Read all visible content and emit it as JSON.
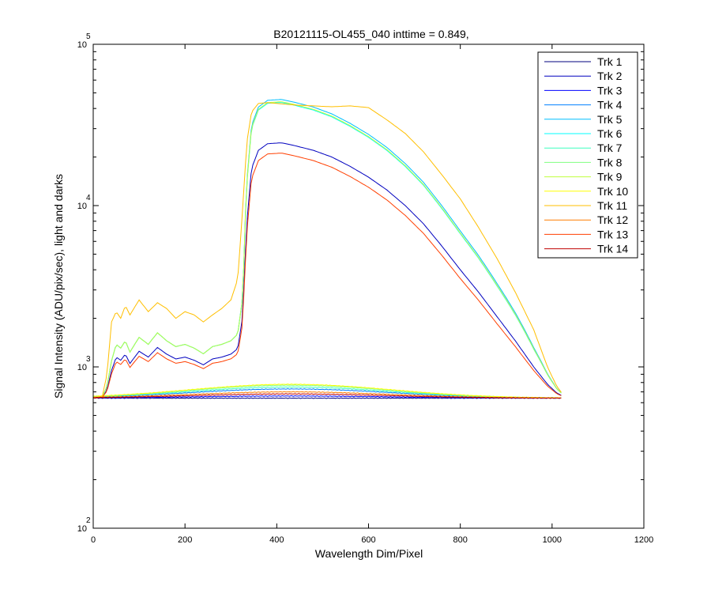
{
  "chart_data": {
    "type": "line",
    "title": "B20121115-OL455_040 inttime = 0.849,",
    "xlabel": "Wavelength Dim/Pixel",
    "ylabel": "Signal Intensity (ADU/pix/sec), light and darks",
    "xlim": [
      0,
      1200
    ],
    "ylim": [
      100,
      100000
    ],
    "yscale": "log",
    "grid": false,
    "legend_position": "top-right",
    "x_ticks": [
      0,
      200,
      400,
      600,
      800,
      1000,
      1200
    ],
    "y_ticks": [
      {
        "value": 100,
        "base": "10",
        "exp": "2"
      },
      {
        "value": 1000,
        "base": "10",
        "exp": "3"
      },
      {
        "value": 10000,
        "base": "10",
        "exp": "4"
      },
      {
        "value": 100000,
        "base": "10",
        "exp": "5"
      }
    ],
    "series": [
      {
        "name": "Trk 1",
        "color": "#00007f",
        "kind": "dark",
        "level": 1.0,
        "dark_peak": 640
      },
      {
        "name": "Trk 2",
        "color": "#0000bf",
        "kind": "light",
        "level": 1.0,
        "dark_peak": 720
      },
      {
        "name": "Trk 3",
        "color": "#0000ff",
        "kind": "dark",
        "level": 1.0,
        "dark_peak": 660
      },
      {
        "name": "Trk 4",
        "color": "#007fff",
        "kind": "dark",
        "level": 1.0,
        "dark_peak": 730
      },
      {
        "name": "Trk 5",
        "color": "#00bfff",
        "kind": "light",
        "level": 1.88,
        "dark_peak": 740
      },
      {
        "name": "Trk 6",
        "color": "#00ffff",
        "kind": "light",
        "level": 1.8,
        "dark_peak": 745
      },
      {
        "name": "Trk 7",
        "color": "#3fffbf",
        "kind": "dark",
        "level": 1.0,
        "dark_peak": 750
      },
      {
        "name": "Trk 8",
        "color": "#7fff7f",
        "kind": "dark",
        "level": 1.0,
        "dark_peak": 770
      },
      {
        "name": "Trk 9",
        "color": "#bfff3f",
        "kind": "light",
        "level": 1.82,
        "dark_peak": 760
      },
      {
        "name": "Trk 10",
        "color": "#ffff00",
        "kind": "dark",
        "level": 1.0,
        "dark_peak": 780
      },
      {
        "name": "Trk 11",
        "color": "#ffbf00",
        "kind": "light_orange",
        "level": 1.0,
        "dark_peak": 760
      },
      {
        "name": "Trk 12",
        "color": "#ff7f00",
        "kind": "dark",
        "level": 1.0,
        "dark_peak": 700
      },
      {
        "name": "Trk 13",
        "color": "#ff3f00",
        "kind": "light",
        "level": 0.86,
        "dark_peak": 690
      },
      {
        "name": "Trk 14",
        "color": "#bf0000",
        "kind": "dark",
        "level": 1.0,
        "dark_peak": 680
      }
    ],
    "light_profile": [
      [
        0,
        640
      ],
      [
        20,
        650
      ],
      [
        30,
        720
      ],
      [
        40,
        950
      ],
      [
        50,
        1150
      ],
      [
        60,
        1100
      ],
      [
        70,
        1200
      ],
      [
        80,
        1050
      ],
      [
        100,
        1250
      ],
      [
        120,
        1150
      ],
      [
        140,
        1320
      ],
      [
        160,
        1200
      ],
      [
        180,
        1120
      ],
      [
        200,
        1150
      ],
      [
        220,
        1100
      ],
      [
        240,
        1030
      ],
      [
        260,
        1120
      ],
      [
        280,
        1150
      ],
      [
        300,
        1200
      ],
      [
        315,
        1300
      ],
      [
        325,
        2000
      ],
      [
        335,
        8000
      ],
      [
        345,
        17000
      ],
      [
        360,
        22000
      ],
      [
        380,
        24200
      ],
      [
        410,
        24500
      ],
      [
        440,
        23500
      ],
      [
        480,
        22000
      ],
      [
        520,
        20000
      ],
      [
        560,
        17500
      ],
      [
        600,
        15000
      ],
      [
        640,
        12500
      ],
      [
        680,
        10000
      ],
      [
        720,
        7700
      ],
      [
        760,
        5600
      ],
      [
        800,
        4000
      ],
      [
        840,
        2900
      ],
      [
        880,
        2050
      ],
      [
        920,
        1450
      ],
      [
        960,
        1000
      ],
      [
        990,
        780
      ],
      [
        1010,
        690
      ],
      [
        1023,
        660
      ]
    ],
    "orange_profile": [
      [
        0,
        640
      ],
      [
        20,
        660
      ],
      [
        30,
        900
      ],
      [
        40,
        1900
      ],
      [
        50,
        2200
      ],
      [
        60,
        2000
      ],
      [
        70,
        2400
      ],
      [
        80,
        2100
      ],
      [
        100,
        2600
      ],
      [
        120,
        2200
      ],
      [
        140,
        2500
      ],
      [
        160,
        2300
      ],
      [
        180,
        2000
      ],
      [
        200,
        2200
      ],
      [
        220,
        2100
      ],
      [
        240,
        1900
      ],
      [
        260,
        2100
      ],
      [
        280,
        2300
      ],
      [
        300,
        2600
      ],
      [
        315,
        3500
      ],
      [
        325,
        9000
      ],
      [
        335,
        25000
      ],
      [
        345,
        38000
      ],
      [
        360,
        43000
      ],
      [
        380,
        43500
      ],
      [
        440,
        42000
      ],
      [
        520,
        41000
      ],
      [
        560,
        41500
      ],
      [
        600,
        40500
      ],
      [
        640,
        34000
      ],
      [
        680,
        28000
      ],
      [
        720,
        21500
      ],
      [
        760,
        15500
      ],
      [
        800,
        11000
      ],
      [
        840,
        7300
      ],
      [
        880,
        4700
      ],
      [
        920,
        2900
      ],
      [
        960,
        1700
      ],
      [
        990,
        1000
      ],
      [
        1010,
        760
      ],
      [
        1023,
        680
      ]
    ]
  }
}
